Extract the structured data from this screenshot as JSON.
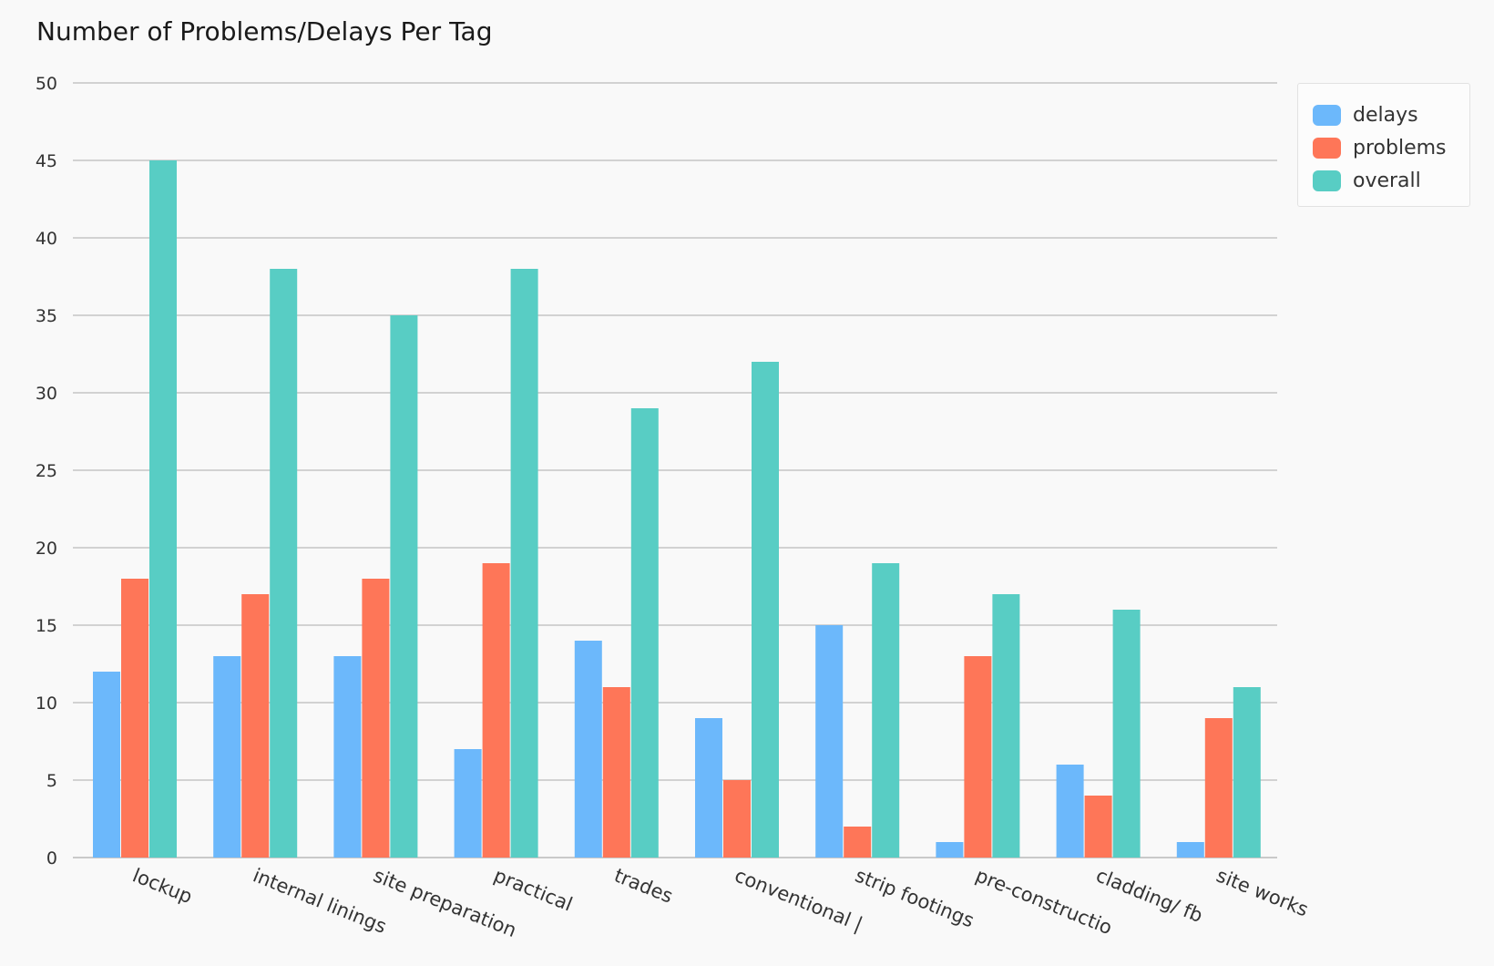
{
  "chart_data": {
    "type": "bar",
    "title": "Number of Problems/Delays Per Tag",
    "xlabel": "",
    "ylabel": "",
    "ylim": [
      0,
      50
    ],
    "yticks": [
      0,
      5,
      10,
      15,
      20,
      25,
      30,
      35,
      40,
      45,
      50
    ],
    "grid": true,
    "legend_position": "top-right",
    "categories": [
      "lockup",
      "internal linings",
      "site preparation",
      "practical",
      "trades",
      "conventional |",
      "strip footings",
      "pre-constructio",
      "cladding/ fb",
      "site works"
    ],
    "series": [
      {
        "name": "delays",
        "color": "#6cb8fb",
        "values": [
          12,
          13,
          13,
          7,
          14,
          9,
          15,
          1,
          6,
          1
        ]
      },
      {
        "name": "problems",
        "color": "#fe7658",
        "values": [
          18,
          17,
          18,
          19,
          11,
          5,
          2,
          13,
          4,
          9
        ]
      },
      {
        "name": "overall",
        "color": "#58cdc4",
        "values": [
          45,
          38,
          35,
          38,
          29,
          32,
          19,
          17,
          16,
          11
        ]
      }
    ]
  }
}
